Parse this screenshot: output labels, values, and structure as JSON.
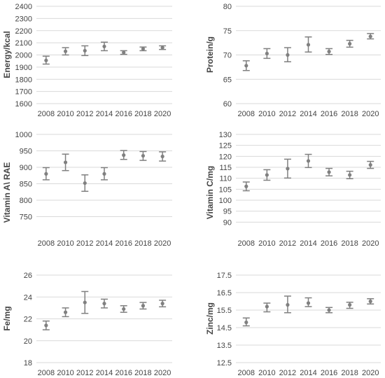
{
  "chart_data": [
    {
      "type": "scatter",
      "ylabel": "Energy/kcal",
      "ylim": [
        1600,
        2400
      ],
      "yticks": [
        1600,
        1700,
        1800,
        1900,
        2000,
        2100,
        2200,
        2300,
        2400
      ],
      "ytick_labels": [
        "1600",
        "1700",
        "1800",
        "1900",
        "2000",
        "2100",
        "2200",
        "2300",
        "2400"
      ],
      "categories": [
        "2008",
        "2010",
        "2012",
        "2014",
        "2016",
        "2018",
        "2020"
      ],
      "grid": true,
      "error_bars": true,
      "series": [
        {
          "values": [
            1955,
            2030,
            2035,
            2070,
            2020,
            2050,
            2060
          ],
          "lower": [
            1925,
            2000,
            1995,
            2035,
            2005,
            2035,
            2045
          ],
          "upper": [
            1990,
            2060,
            2075,
            2105,
            2035,
            2065,
            2075
          ]
        }
      ]
    },
    {
      "type": "scatter",
      "ylabel": "Protein/g",
      "ylim": [
        60,
        80
      ],
      "yticks": [
        60,
        65,
        70,
        75,
        80
      ],
      "ytick_labels": [
        "60",
        "65",
        "70",
        "75",
        "80"
      ],
      "categories": [
        "2008",
        "2010",
        "2012",
        "2014",
        "2016",
        "2018",
        "2020"
      ],
      "grid": true,
      "error_bars": true,
      "series": [
        {
          "values": [
            67.8,
            70.3,
            70.0,
            72.1,
            70.7,
            72.3,
            73.8
          ],
          "lower": [
            66.8,
            69.3,
            68.6,
            70.6,
            70.1,
            71.6,
            73.3
          ],
          "upper": [
            68.8,
            71.3,
            71.5,
            73.7,
            71.3,
            73.0,
            74.4
          ]
        }
      ]
    },
    {
      "type": "scatter",
      "ylabel": "Vitamin A\\ RAE",
      "ylim": [
        700,
        1000
      ],
      "yticks": [
        750,
        800,
        850,
        900,
        950,
        1000
      ],
      "ytick_labels": [
        "750",
        "800",
        "850",
        "900",
        "950",
        "1000"
      ],
      "categories": [
        "2008",
        "2010",
        "2012",
        "2014",
        "2016",
        "2018",
        "2020"
      ],
      "grid": true,
      "error_bars": true,
      "series": [
        {
          "values": [
            880,
            915,
            852,
            880,
            937,
            935,
            933
          ],
          "lower": [
            862,
            890,
            827,
            862,
            924,
            921,
            919
          ],
          "upper": [
            899,
            940,
            877,
            899,
            951,
            948,
            947
          ]
        }
      ]
    },
    {
      "type": "scatter",
      "ylabel": "Vitamin C/mg",
      "ylim": [
        85,
        130
      ],
      "yticks": [
        90,
        95,
        100,
        105,
        110,
        115,
        120,
        125,
        130
      ],
      "ytick_labels": [
        "90",
        "95",
        "100",
        "105",
        "110",
        "115",
        "120",
        "125",
        "130"
      ],
      "categories": [
        "2008",
        "2010",
        "2012",
        "2014",
        "2016",
        "2018",
        "2020"
      ],
      "grid": true,
      "error_bars": true,
      "series": [
        {
          "values": [
            106.3,
            111.5,
            114.4,
            117.9,
            112.8,
            111.5,
            116.1
          ],
          "lower": [
            104.3,
            109.1,
            110.1,
            114.9,
            111.1,
            109.8,
            114.5
          ],
          "upper": [
            108.3,
            113.9,
            118.7,
            120.9,
            114.5,
            113.2,
            117.7
          ]
        }
      ]
    },
    {
      "type": "scatter",
      "ylabel": "Fe/mg",
      "ylim": [
        18,
        26
      ],
      "yticks": [
        18,
        20,
        22,
        24,
        26
      ],
      "ytick_labels": [
        "18",
        "20",
        "22",
        "24",
        "26"
      ],
      "categories": [
        "2008",
        "2010",
        "2012",
        "2014",
        "2016",
        "2018",
        "2020"
      ],
      "grid": true,
      "error_bars": true,
      "series": [
        {
          "values": [
            21.4,
            22.6,
            23.5,
            23.4,
            22.9,
            23.2,
            23.4
          ],
          "lower": [
            21.0,
            22.2,
            22.5,
            23.0,
            22.6,
            22.9,
            23.1
          ],
          "upper": [
            21.8,
            23.0,
            24.5,
            23.8,
            23.2,
            23.5,
            23.7
          ]
        }
      ]
    },
    {
      "type": "scatter",
      "ylabel": "Zinc/mg",
      "ylim": [
        12.5,
        17.5
      ],
      "yticks": [
        12.5,
        13.5,
        14.5,
        15.5,
        16.5,
        17.5
      ],
      "ytick_labels": [
        "12.5",
        "13.5",
        "14.5",
        "15.5",
        "16.5",
        "17.5"
      ],
      "categories": [
        "2008",
        "2010",
        "2012",
        "2014",
        "2016",
        "2018",
        "2020"
      ],
      "grid": true,
      "error_bars": true,
      "series": [
        {
          "values": [
            14.8,
            15.7,
            15.8,
            15.9,
            15.5,
            15.8,
            16.0
          ],
          "lower": [
            14.6,
            15.4,
            15.35,
            15.7,
            15.35,
            15.6,
            15.85
          ],
          "upper": [
            15.05,
            15.9,
            16.3,
            16.2,
            15.65,
            15.95,
            16.15
          ]
        }
      ]
    }
  ],
  "colors": {
    "marker": "#808080",
    "grid": "#d9d9d9",
    "text": "#595959"
  }
}
